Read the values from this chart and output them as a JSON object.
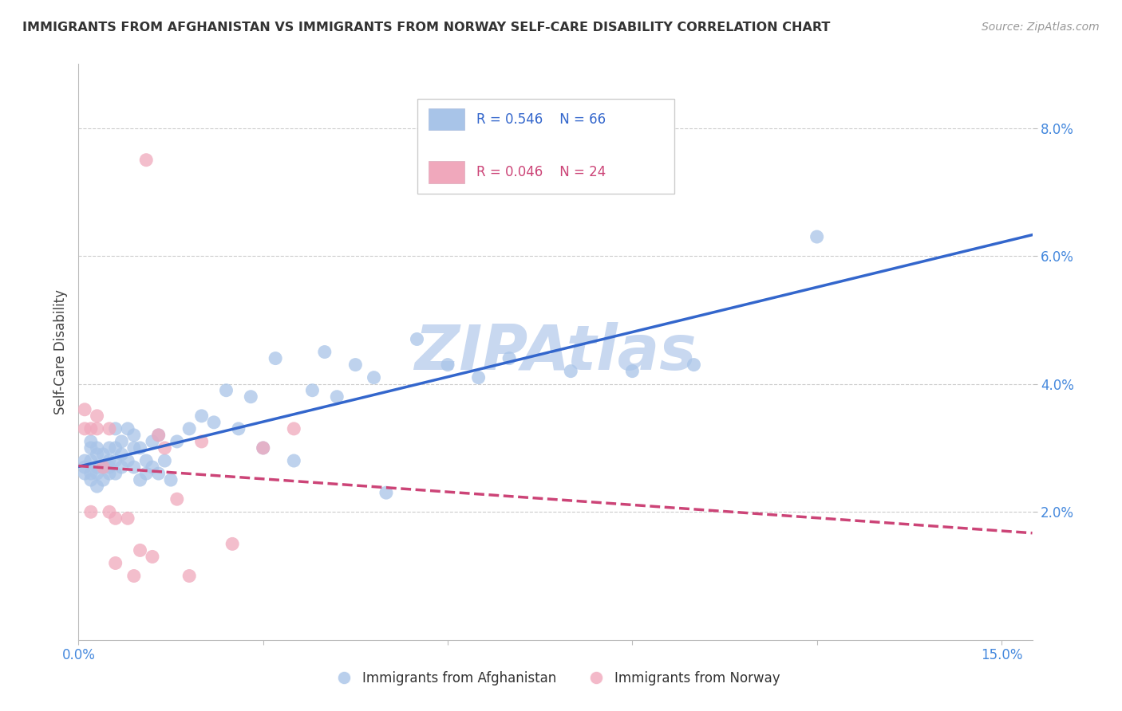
{
  "title": "IMMIGRANTS FROM AFGHANISTAN VS IMMIGRANTS FROM NORWAY SELF-CARE DISABILITY CORRELATION CHART",
  "source": "Source: ZipAtlas.com",
  "ylabel": "Self-Care Disability",
  "ylim": [
    0.0,
    0.09
  ],
  "xlim": [
    0.0,
    0.155
  ],
  "yticks": [
    0.02,
    0.04,
    0.06,
    0.08
  ],
  "ytick_labels": [
    "2.0%",
    "4.0%",
    "6.0%",
    "8.0%"
  ],
  "xtick_positions": [
    0.0,
    0.03,
    0.06,
    0.09,
    0.12,
    0.15
  ],
  "xtick_labels": [
    "0.0%",
    "",
    "",
    "",
    "",
    "15.0%"
  ],
  "legend_r1": "R = 0.546",
  "legend_n1": "N = 66",
  "legend_r2": "R = 0.046",
  "legend_n2": "N = 24",
  "color_afghanistan": "#a8c4e8",
  "color_norway": "#f0a8bc",
  "trendline_afghanistan_color": "#3366cc",
  "trendline_norway_color": "#cc4477",
  "watermark": "ZIPAtlas",
  "watermark_color": "#c8d8f0",
  "afghanistan_x": [
    0.001,
    0.001,
    0.001,
    0.002,
    0.002,
    0.002,
    0.002,
    0.002,
    0.003,
    0.003,
    0.003,
    0.003,
    0.003,
    0.004,
    0.004,
    0.004,
    0.005,
    0.005,
    0.005,
    0.005,
    0.006,
    0.006,
    0.006,
    0.006,
    0.007,
    0.007,
    0.007,
    0.008,
    0.008,
    0.009,
    0.009,
    0.009,
    0.01,
    0.01,
    0.011,
    0.011,
    0.012,
    0.012,
    0.013,
    0.013,
    0.014,
    0.015,
    0.016,
    0.018,
    0.02,
    0.022,
    0.024,
    0.026,
    0.028,
    0.03,
    0.032,
    0.035,
    0.038,
    0.04,
    0.042,
    0.045,
    0.048,
    0.05,
    0.055,
    0.06,
    0.065,
    0.07,
    0.08,
    0.09,
    0.1,
    0.12
  ],
  "afghanistan_y": [
    0.026,
    0.027,
    0.028,
    0.025,
    0.026,
    0.028,
    0.03,
    0.031,
    0.024,
    0.026,
    0.027,
    0.029,
    0.03,
    0.025,
    0.027,
    0.029,
    0.026,
    0.027,
    0.028,
    0.03,
    0.026,
    0.028,
    0.03,
    0.033,
    0.027,
    0.029,
    0.031,
    0.028,
    0.033,
    0.027,
    0.03,
    0.032,
    0.025,
    0.03,
    0.026,
    0.028,
    0.027,
    0.031,
    0.026,
    0.032,
    0.028,
    0.025,
    0.031,
    0.033,
    0.035,
    0.034,
    0.039,
    0.033,
    0.038,
    0.03,
    0.044,
    0.028,
    0.039,
    0.045,
    0.038,
    0.043,
    0.041,
    0.023,
    0.047,
    0.043,
    0.041,
    0.044,
    0.042,
    0.042,
    0.043,
    0.063
  ],
  "norway_x": [
    0.001,
    0.001,
    0.002,
    0.002,
    0.003,
    0.003,
    0.004,
    0.005,
    0.005,
    0.006,
    0.006,
    0.008,
    0.009,
    0.01,
    0.011,
    0.012,
    0.013,
    0.014,
    0.016,
    0.018,
    0.02,
    0.025,
    0.03,
    0.035
  ],
  "norway_y": [
    0.033,
    0.036,
    0.02,
    0.033,
    0.033,
    0.035,
    0.027,
    0.02,
    0.033,
    0.012,
    0.019,
    0.019,
    0.01,
    0.014,
    0.075,
    0.013,
    0.032,
    0.03,
    0.022,
    0.01,
    0.031,
    0.015,
    0.03,
    0.033
  ]
}
